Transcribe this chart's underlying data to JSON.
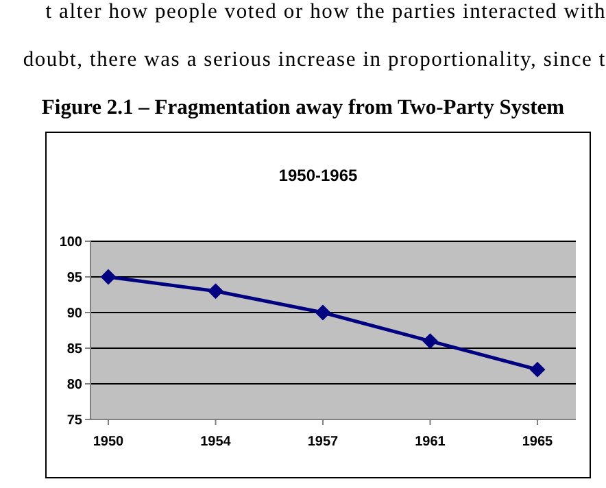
{
  "chart_data": {
    "type": "line",
    "title": "Figure 2.1 – Fragmentation away from Two-Party System",
    "subtitle": "1950-1965",
    "annotations": [
      "t alter how people voted or how the parties interacted with",
      "doubt, there was a serious increase in proportionality, since t"
    ],
    "categories": [
      "1950",
      "1954",
      "1957",
      "1961",
      "1965"
    ],
    "series": [
      {
        "color": "#000080",
        "values": [
          95,
          93,
          90,
          86,
          82
        ]
      }
    ],
    "ylim": [
      75,
      100
    ],
    "yticks": [
      75,
      80,
      85,
      90,
      95,
      100
    ],
    "grid": "y",
    "legend": false,
    "marker": "diamond",
    "line_style": "solid"
  }
}
